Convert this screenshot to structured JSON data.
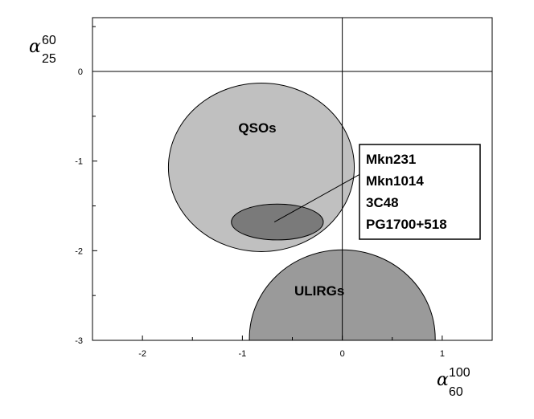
{
  "chart_data": {
    "type": "scatter",
    "xlim": [
      -2.5,
      1.5
    ],
    "ylim": [
      -3,
      0.6
    ],
    "x_ticks": [
      -2,
      -1,
      0,
      1
    ],
    "y_ticks": [
      0,
      -1,
      -2,
      -3
    ],
    "reference_lines": {
      "x": 0,
      "y": 0
    },
    "xlabel": {
      "symbol": "α",
      "superscript": "100",
      "subscript": "60"
    },
    "ylabel": {
      "symbol": "α",
      "superscript": "60",
      "subscript": "25"
    },
    "regions": [
      {
        "label": "QSOs",
        "shape": "ellipse",
        "cx": -0.81,
        "cy": -1.07,
        "rx": 0.93,
        "ry": 0.94,
        "fill": "#c0c0c0"
      },
      {
        "label": "ULIRGs",
        "shape": "ellipse",
        "cx": 0.0,
        "cy": -2.98,
        "rx": 0.93,
        "ry": 0.99,
        "fill": "#9a9a9a"
      },
      {
        "label": "",
        "shape": "ellipse",
        "cx": -0.65,
        "cy": -1.68,
        "rx": 0.46,
        "ry": 0.2,
        "fill": "#7a7a7a"
      }
    ],
    "annotation": {
      "lines": [
        "Mkn231",
        "Mkn1014",
        "3C48",
        "PG1700+518"
      ],
      "pointer_target": {
        "x": -0.68,
        "y": -1.68
      },
      "pointer_start": {
        "x": 0.22,
        "y": -1.12
      }
    }
  }
}
